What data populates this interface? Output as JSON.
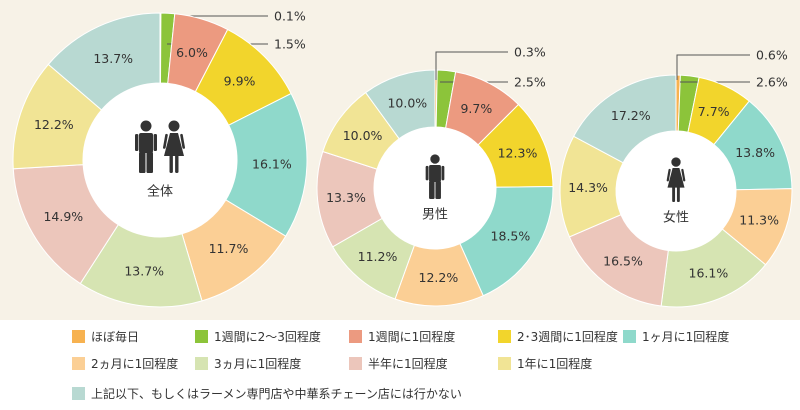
{
  "categories": [
    "ほぼ毎日",
    "1週間に2～3回程度",
    "1週間に1回程度",
    "2･3週間に1回程度",
    "1ヶ月に1回程度",
    "2ヵ月に1回程度",
    "3ヵ月に1回程度",
    "半年に1回程度",
    "1年に1回程度",
    "上記以下、もしくはラーメン専門店や中華系チェーン店には行かない"
  ],
  "colors": [
    "#f7b250",
    "#8cc43a",
    "#ec9a80",
    "#f2d52c",
    "#8fd9cb",
    "#fbcf95",
    "#d6e4b2",
    "#ecc6bb",
    "#f1e495",
    "#b8d9d2"
  ],
  "chart_data": [
    {
      "type": "pie",
      "center_label": "全体",
      "icon": "man-and-woman-icon",
      "values": [
        0.1,
        1.5,
        6.0,
        9.9,
        16.1,
        11.7,
        13.7,
        14.9,
        12.2,
        13.7
      ],
      "value_labels": [
        "0.1%",
        "1.5%",
        "6.0%",
        "9.9%",
        "16.1%",
        "11.7%",
        "13.7%",
        "14.9%",
        "12.2%",
        "13.7%"
      ]
    },
    {
      "type": "pie",
      "center_label": "男性",
      "icon": "man-icon",
      "values": [
        0.3,
        2.5,
        9.7,
        12.3,
        18.5,
        12.2,
        11.2,
        13.3,
        10.0,
        10.0
      ],
      "value_labels": [
        "0.3%",
        "2.5%",
        "9.7%",
        "12.3%",
        "18.5%",
        "12.2%",
        "11.2%",
        "13.3%",
        "10.0%",
        "10.0%"
      ]
    },
    {
      "type": "pie",
      "center_label": "女性",
      "icon": "woman-icon",
      "values": [
        0.6,
        2.6,
        7.7,
        13.8,
        11.3,
        16.1,
        16.5,
        14.3,
        17.2
      ],
      "value_labels": [
        "0.6%",
        "2.6%",
        "7.7%",
        "13.8%",
        "11.3%",
        "16.1%",
        "16.5%",
        "14.3%",
        "17.2%"
      ],
      "category_indexes": [
        0,
        1,
        3,
        4,
        5,
        6,
        7,
        8,
        9
      ]
    }
  ]
}
